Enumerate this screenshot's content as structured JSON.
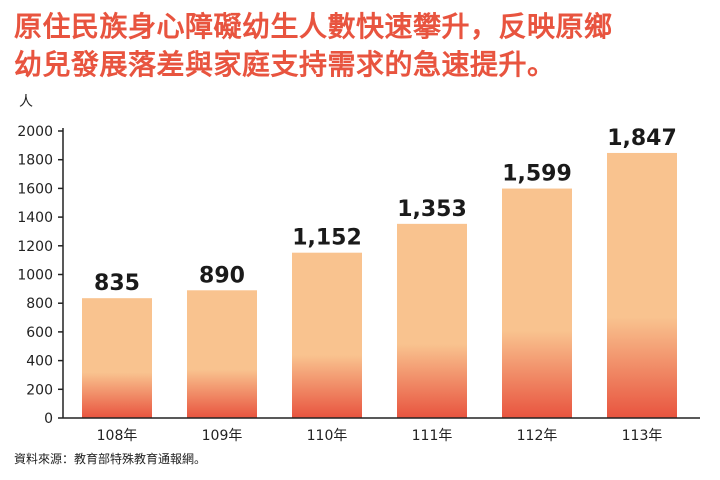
{
  "headline": {
    "line1": "原住民族身心障礙幼生人數快速攀升，反映原鄉",
    "line2": "幼兒發展落差與家庭支持需求的急速提升。"
  },
  "source": "資料來源：教育部特殊教育通報網。",
  "colors": {
    "title": "#e8543f",
    "bar_top": "#f9c38f",
    "bar_bottom": "#e8543f",
    "axis": "#222222"
  },
  "chart_data": {
    "type": "bar",
    "categories": [
      "108年",
      "109年",
      "110年",
      "111年",
      "112年",
      "113年"
    ],
    "values": [
      835,
      890,
      1152,
      1353,
      1599,
      1847
    ],
    "value_labels": [
      "835",
      "890",
      "1,152",
      "1,353",
      "1,599",
      "1,847"
    ],
    "ylabel": "人",
    "ylim": [
      0,
      2000
    ],
    "yticks": [
      0,
      200,
      400,
      600,
      800,
      1000,
      1200,
      1400,
      1600,
      1800,
      2000
    ],
    "grid": false,
    "legend": "none"
  }
}
